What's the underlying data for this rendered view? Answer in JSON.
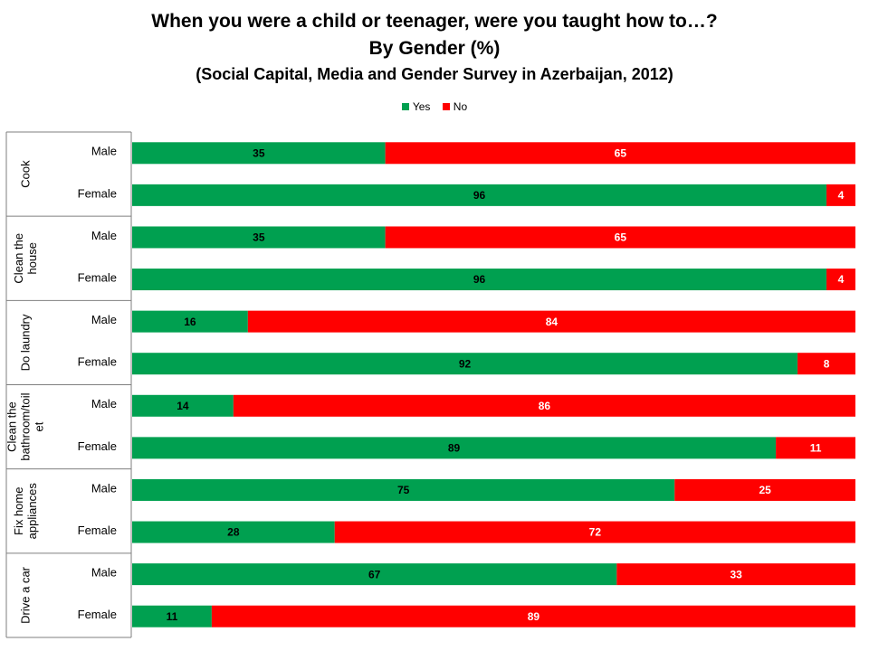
{
  "chart_data": {
    "type": "bar",
    "orientation": "horizontal-stacked-100",
    "title": "When you were a child or teenager, were you taught how to…?",
    "subtitle": "By Gender (%)",
    "source": "(Social Capital, Media and Gender Survey in Azerbaijan, 2012)",
    "legend": {
      "placement": "top-center",
      "entries": [
        {
          "name": "Yes",
          "color": "#00a050"
        },
        {
          "name": "No",
          "color": "#ff0000"
        }
      ]
    },
    "groups": [
      {
        "label": [
          "Cook"
        ],
        "rows": [
          {
            "label": "Male",
            "yes": 35,
            "no": 65
          },
          {
            "label": "Female",
            "yes": 96,
            "no": 4
          }
        ]
      },
      {
        "label": [
          "Clean the",
          "house"
        ],
        "rows": [
          {
            "label": "Male",
            "yes": 35,
            "no": 65
          },
          {
            "label": "Female",
            "yes": 96,
            "no": 4
          }
        ]
      },
      {
        "label": [
          "Do laundry"
        ],
        "rows": [
          {
            "label": "Male",
            "yes": 16,
            "no": 84
          },
          {
            "label": "Female",
            "yes": 92,
            "no": 8
          }
        ]
      },
      {
        "label": [
          "Clean the",
          "bathroom/toil",
          "et"
        ],
        "rows": [
          {
            "label": "Male",
            "yes": 14,
            "no": 86
          },
          {
            "label": "Female",
            "yes": 89,
            "no": 11
          }
        ]
      },
      {
        "label": [
          "Fix home",
          "appliances"
        ],
        "rows": [
          {
            "label": "Male",
            "yes": 75,
            "no": 25
          },
          {
            "label": "Female",
            "yes": 28,
            "no": 72
          }
        ]
      },
      {
        "label": [
          "Drive a car"
        ],
        "rows": [
          {
            "label": "Male",
            "yes": 67,
            "no": 33
          },
          {
            "label": "Female",
            "yes": 11,
            "no": 89
          }
        ]
      }
    ],
    "xlim": [
      0,
      100
    ],
    "grid": false
  }
}
